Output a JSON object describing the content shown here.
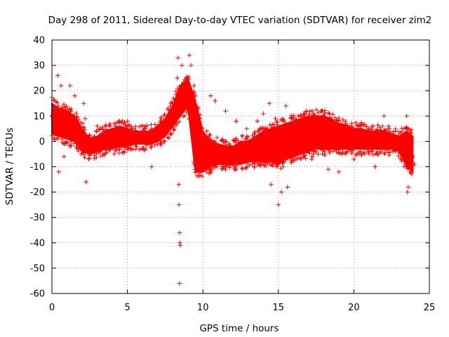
{
  "chart_data": {
    "type": "scatter",
    "title": "Day 298 of 2011, Sidereal Day-to-day VTEC variation (SDTVAR) for receiver zim2",
    "xlabel": "GPS time / hours",
    "ylabel": "SDTVAR / TECUs",
    "xlim": [
      0,
      25
    ],
    "ylim": [
      -60,
      40
    ],
    "xticks": [
      0,
      5,
      10,
      15,
      20,
      25
    ],
    "yticks": [
      -60,
      -50,
      -40,
      -30,
      -20,
      -10,
      0,
      10,
      20,
      30,
      40
    ],
    "grid": true,
    "marker": "+",
    "color": "#ff0000",
    "series": [
      {
        "name": "SDTVAR",
        "band": {
          "x": [
            0.0,
            0.5,
            1.0,
            1.5,
            2.0,
            2.5,
            3.0,
            3.5,
            4.0,
            4.5,
            5.0,
            5.5,
            6.0,
            6.5,
            7.0,
            7.5,
            8.0,
            8.5,
            9.0,
            9.5,
            10.0,
            10.5,
            11.0,
            11.5,
            12.0,
            12.5,
            13.0,
            13.5,
            14.0,
            14.5,
            15.0,
            15.5,
            16.0,
            16.5,
            17.0,
            17.5,
            18.0,
            18.5,
            19.0,
            19.5,
            20.0,
            20.5,
            21.0,
            21.5,
            22.0,
            22.5,
            23.0,
            23.5,
            23.9
          ],
          "y_low": [
            3,
            2,
            1,
            0,
            -4,
            -5,
            -4,
            -3,
            -3,
            -2,
            -2,
            -1,
            -1,
            -1,
            0,
            2,
            6,
            10,
            14,
            -12,
            -12,
            -10,
            -9,
            -9,
            -9,
            -9,
            -8,
            -8,
            -8,
            -8,
            -9,
            -7,
            -6,
            -5,
            -4,
            -3,
            -3,
            -3,
            -3,
            -3,
            -3,
            -3,
            -3,
            -3,
            -3,
            -3,
            -4,
            -10,
            -12
          ],
          "y_high": [
            15,
            13,
            12,
            10,
            5,
            1,
            2,
            4,
            5,
            6,
            5,
            4,
            4,
            4,
            6,
            9,
            14,
            22,
            25,
            16,
            4,
            0,
            -1,
            -2,
            -2,
            0,
            0,
            2,
            4,
            5,
            6,
            7,
            8,
            9,
            10,
            10,
            10,
            9,
            7,
            6,
            5,
            5,
            4,
            4,
            4,
            3,
            2,
            4,
            2
          ],
          "y_center": [
            10,
            8,
            6,
            4,
            0,
            -2,
            -2,
            0,
            1,
            2,
            2,
            2,
            2,
            2,
            3,
            5,
            10,
            17,
            19,
            3,
            -4,
            -5,
            -5,
            -5,
            -5,
            -4,
            -4,
            -3,
            -2,
            -1,
            -1,
            0,
            1,
            2,
            3,
            4,
            4,
            3,
            2,
            1,
            1,
            1,
            0,
            0,
            0,
            0,
            -1,
            -4,
            -6
          ]
        },
        "outliers": [
          [
            0.38,
            26
          ],
          [
            0.45,
            -12
          ],
          [
            0.6,
            22
          ],
          [
            0.8,
            -6
          ],
          [
            1.2,
            22
          ],
          [
            1.5,
            18
          ],
          [
            2.1,
            15
          ],
          [
            2.2,
            9
          ],
          [
            2.25,
            -16
          ],
          [
            3.0,
            6
          ],
          [
            5.0,
            8
          ],
          [
            5.6,
            -2
          ],
          [
            6.6,
            -10
          ],
          [
            7.8,
            10
          ],
          [
            8.3,
            25
          ],
          [
            8.35,
            33
          ],
          [
            8.4,
            -17
          ],
          [
            8.42,
            -25
          ],
          [
            8.45,
            -36
          ],
          [
            8.47,
            -40
          ],
          [
            8.5,
            -41
          ],
          [
            8.45,
            -56
          ],
          [
            8.6,
            30
          ],
          [
            9.1,
            34
          ],
          [
            9.2,
            30
          ],
          [
            9.4,
            22
          ],
          [
            10.5,
            18
          ],
          [
            10.8,
            16
          ],
          [
            11.5,
            12
          ],
          [
            12.2,
            8
          ],
          [
            12.9,
            5
          ],
          [
            13.6,
            8
          ],
          [
            14.0,
            11
          ],
          [
            14.4,
            15
          ],
          [
            14.8,
            9
          ],
          [
            15.0,
            -25
          ],
          [
            15.2,
            -20
          ],
          [
            15.5,
            14
          ],
          [
            15.6,
            -18
          ],
          [
            14.5,
            -17
          ],
          [
            16.2,
            8
          ],
          [
            17.2,
            -7
          ],
          [
            18.3,
            -11
          ],
          [
            19.0,
            -12
          ],
          [
            20.0,
            -7
          ],
          [
            21.0,
            -5
          ],
          [
            21.4,
            -10
          ],
          [
            22.0,
            10
          ],
          [
            22.3,
            6
          ],
          [
            23.5,
            10
          ],
          [
            23.6,
            5
          ],
          [
            23.55,
            -20
          ],
          [
            23.6,
            -18
          ],
          [
            23.8,
            -12
          ],
          [
            24.0,
            -9
          ]
        ]
      }
    ]
  }
}
